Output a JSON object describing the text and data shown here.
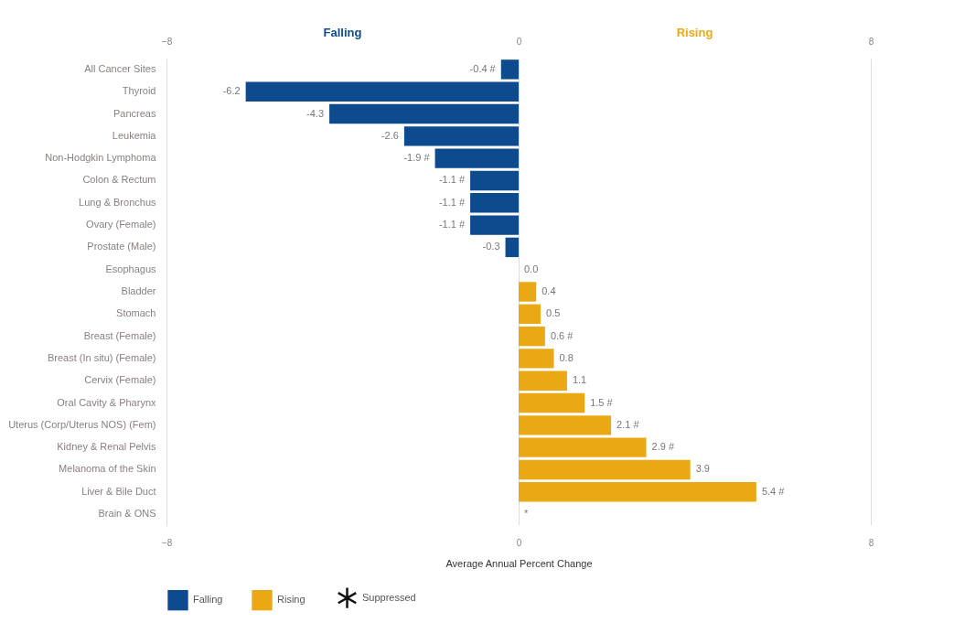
{
  "chart_data": {
    "type": "bar",
    "orientation": "horizontal",
    "categories": [
      "All Cancer Sites",
      "Thyroid",
      "Pancreas",
      "Leukemia",
      "Non-Hodgkin Lymphoma",
      "Colon & Rectum",
      "Lung & Bronchus",
      "Ovary (Female)",
      "Prostate (Male)",
      "Esophagus",
      "Bladder",
      "Stomach",
      "Breast (Female)",
      "Breast (In situ) (Female)",
      "Cervix (Female)",
      "Oral Cavity & Pharynx",
      "Uterus (Corp/Uterus NOS) (Fem)",
      "Kidney & Renal Pelvis",
      "Melanoma of the Skin",
      "Liver & Bile Duct",
      "Brain & ONS"
    ],
    "series": [
      {
        "name": "Falling",
        "color": "#0d4a8e",
        "values": [
          -0.4,
          -6.2,
          -4.3,
          -2.6,
          -1.9,
          -1.1,
          -1.1,
          -1.1,
          -0.3,
          null,
          null,
          null,
          null,
          null,
          null,
          null,
          null,
          null,
          null,
          null,
          null
        ],
        "value_labels": [
          "-0.4 #",
          "-6.2",
          "-4.3",
          "-2.6",
          "-1.9 #",
          "-1.1 #",
          "-1.1 #",
          "-1.1 #",
          "-0.3",
          null,
          null,
          null,
          null,
          null,
          null,
          null,
          null,
          null,
          null,
          null,
          null
        ]
      },
      {
        "name": "Rising",
        "color": "#eba815",
        "values": [
          null,
          null,
          null,
          null,
          null,
          null,
          null,
          null,
          null,
          0.0,
          0.4,
          0.5,
          0.6,
          0.8,
          1.1,
          1.5,
          2.1,
          2.9,
          3.9,
          5.4,
          null
        ],
        "value_labels": [
          null,
          null,
          null,
          null,
          null,
          null,
          null,
          null,
          null,
          "0.0",
          "0.4",
          "0.5",
          "0.6 #",
          "0.8",
          "1.1",
          "1.5 #",
          "2.1 #",
          "2.9 #",
          "3.9",
          "5.4 #",
          null
        ]
      },
      {
        "name": "Suppressed",
        "type": "scatter",
        "marker": "cross",
        "color": "#111111",
        "values": [
          null,
          null,
          null,
          null,
          null,
          null,
          null,
          null,
          null,
          null,
          null,
          null,
          null,
          null,
          null,
          null,
          null,
          null,
          null,
          null,
          null
        ],
        "value_labels": [
          null,
          null,
          null,
          null,
          null,
          null,
          null,
          null,
          null,
          null,
          null,
          null,
          null,
          null,
          null,
          null,
          null,
          null,
          null,
          null,
          "*"
        ]
      }
    ],
    "xlabel": "Average Annual Percent Change",
    "xlim": [
      -8,
      8
    ],
    "xticks": [
      -8,
      0,
      8
    ],
    "x2lim": [
      -8,
      8
    ],
    "x2ticks": [
      -8,
      0,
      8
    ],
    "annotations": [
      "Falling",
      "Rising"
    ],
    "grid": "x",
    "legend": "bottom"
  }
}
